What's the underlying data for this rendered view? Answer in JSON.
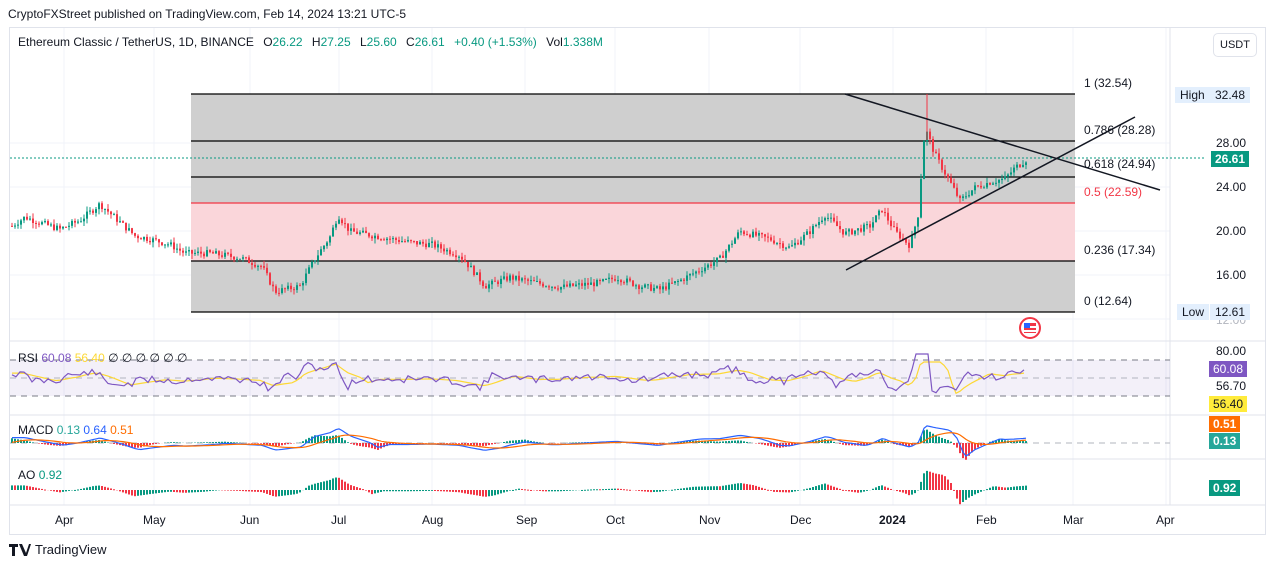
{
  "header": {
    "published": "CryptoFXStreet published on TradingView.com, Feb 14, 2024 13:21 UTC-5"
  },
  "legend": {
    "symbol": "Ethereum Classic / TetherUS, 1D, BINANCE",
    "open_label": "O",
    "open": "26.22",
    "high_label": "H",
    "high": "27.25",
    "low_label": "L",
    "low": "25.60",
    "close_label": "C",
    "close": "26.61",
    "change": "+0.40 (+1.53%)",
    "vol_label": "Vol",
    "vol": "1.338M"
  },
  "currency_button": "USDT",
  "price_axis": {
    "ticks": [
      "28.00",
      "24.00",
      "20.00",
      "16.00",
      "12.00"
    ],
    "current_price": "26.61",
    "high_label": "High",
    "high_value": "32.48",
    "low_label": "Low",
    "low_value": "12.61"
  },
  "fibonacci": {
    "levels": [
      {
        "label": "1 (32.54)",
        "ratio": 1,
        "price": 32.54
      },
      {
        "label": "0.786 (28.28)",
        "ratio": 0.786,
        "price": 28.28
      },
      {
        "label": "0.618 (24.94)",
        "ratio": 0.618,
        "price": 24.94
      },
      {
        "label": "0.5 (22.59)",
        "ratio": 0.5,
        "price": 22.59
      },
      {
        "label": "0.236 (17.34)",
        "ratio": 0.236,
        "price": 17.34
      },
      {
        "label": "0 (12.64)",
        "ratio": 0,
        "price": 12.64
      }
    ]
  },
  "indicators": {
    "rsi": {
      "name": "RSI",
      "value": "60.08",
      "ma": "56.40",
      "extras": "∅ ∅ ∅ ∅ ∅ ∅",
      "axis_top": "80.00",
      "tag_rsi": "60.08",
      "axis_mid": "56.70",
      "tag_ma": "56.40"
    },
    "macd": {
      "name": "MACD",
      "hist": "0.13",
      "macd": "0.64",
      "signal": "0.51",
      "tag_signal": "0.51",
      "tag_hist": "0.13"
    },
    "ao": {
      "name": "AO",
      "value": "0.92",
      "tag": "0.92"
    }
  },
  "time_axis": [
    "Apr",
    "May",
    "Jun",
    "Jul",
    "Aug",
    "Sep",
    "Oct",
    "Nov",
    "Dec",
    "2024",
    "Feb",
    "Mar",
    "Apr"
  ],
  "footer": {
    "brand": "TradingView"
  },
  "colors": {
    "up": "#089981",
    "down": "#f23645",
    "rsi": "#7e57c2",
    "rsi_ma": "#fdd835",
    "macd": "#2962ff",
    "signal": "#ff6d00",
    "fib_zone": "#cccccc",
    "fib_half": "#f8d7da"
  },
  "chart_data": {
    "type": "candlestick",
    "title": "Ethereum Classic / TetherUS, 1D, BINANCE",
    "x_ticks": [
      "Apr",
      "May",
      "Jun",
      "Jul",
      "Aug",
      "Sep",
      "Oct",
      "Nov",
      "Dec",
      "2024",
      "Feb",
      "Mar",
      "Apr"
    ],
    "y_ticks": [
      12,
      16,
      20,
      24,
      28
    ],
    "ylim": [
      11.5,
      33.5
    ],
    "ohlc_last": {
      "open": 26.22,
      "high": 27.25,
      "low": 25.6,
      "close": 26.61
    },
    "approx_close_by_month": [
      {
        "month": "Apr 2023",
        "close": 20.5
      },
      {
        "month": "May 2023",
        "close": 19.0
      },
      {
        "month": "Jun 2023",
        "close": 17.5
      },
      {
        "month": "Jul 2023",
        "close": 20.0
      },
      {
        "month": "Aug 2023",
        "close": 17.8
      },
      {
        "month": "Sep 2023",
        "close": 15.3
      },
      {
        "month": "Oct 2023",
        "close": 15.0
      },
      {
        "month": "Nov 2023",
        "close": 20.5
      },
      {
        "month": "Dec 2023",
        "close": 21.0
      },
      {
        "month": "Jan 2024",
        "close": 21.5
      },
      {
        "month": "Feb 2024",
        "close": 26.61
      }
    ],
    "fib_retracement": [
      32.54,
      28.28,
      24.94,
      22.59,
      17.34,
      12.64
    ],
    "series_high": 32.48,
    "series_low": 12.61,
    "annotations": [
      "symmetrical triangle trendlines",
      "fibonacci retracement 0-1"
    ]
  }
}
